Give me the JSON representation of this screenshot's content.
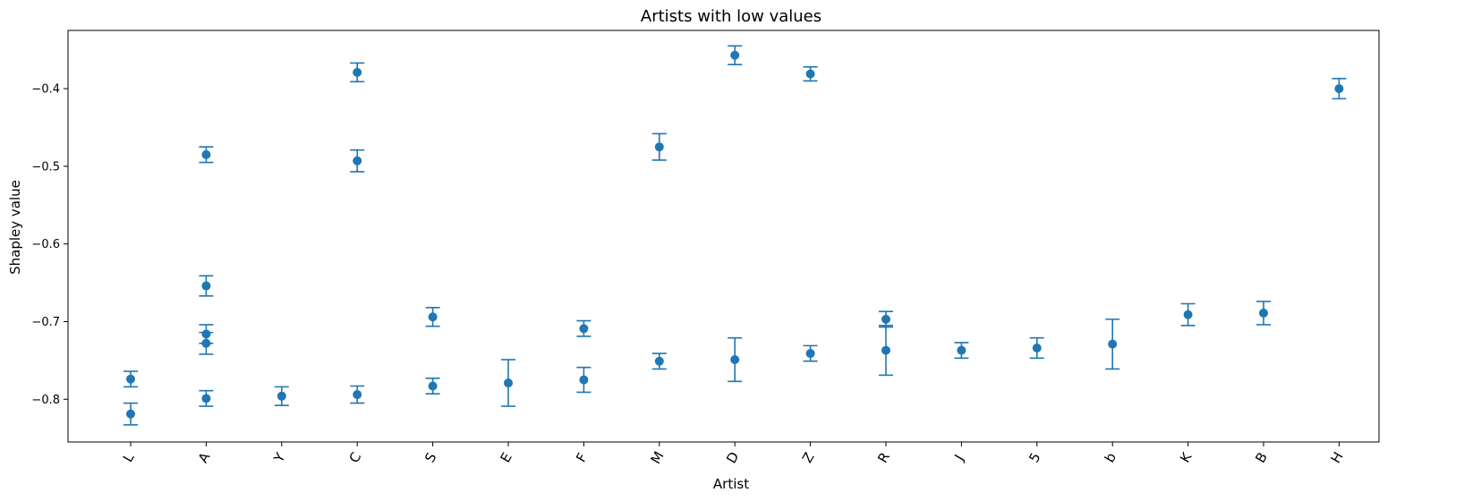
{
  "chart_data": {
    "type": "scatter",
    "title": "Artists with low values",
    "xlabel": "Artist",
    "ylabel": "Shapley value",
    "categories": [
      "L",
      "A",
      "Y",
      "C",
      "S",
      "E",
      "F",
      "M",
      "D",
      "Z",
      "R",
      "J",
      "5",
      "b",
      "K",
      "B",
      "H"
    ],
    "ylim": [
      -0.855,
      -0.325
    ],
    "yticks": [
      -0.8,
      -0.7,
      -0.6,
      -0.5,
      -0.4
    ],
    "ytick_labels": [
      "−0.8",
      "−0.7",
      "−0.6",
      "−0.5",
      "−0.4"
    ],
    "grid": false,
    "legend": "none",
    "marker_color": "#1f77b4",
    "points": [
      {
        "category": "L",
        "y": -0.774,
        "err": 0.01
      },
      {
        "category": "L",
        "y": -0.819,
        "err": 0.014
      },
      {
        "category": "A",
        "y": -0.485,
        "err": 0.01
      },
      {
        "category": "A",
        "y": -0.654,
        "err": 0.013
      },
      {
        "category": "A",
        "y": -0.716,
        "err": 0.012
      },
      {
        "category": "A",
        "y": -0.728,
        "err": 0.014
      },
      {
        "category": "A",
        "y": -0.799,
        "err": 0.01
      },
      {
        "category": "Y",
        "y": -0.796,
        "err": 0.012
      },
      {
        "category": "C",
        "y": -0.379,
        "err": 0.012
      },
      {
        "category": "C",
        "y": -0.493,
        "err": 0.014
      },
      {
        "category": "C",
        "y": -0.794,
        "err": 0.011
      },
      {
        "category": "S",
        "y": -0.694,
        "err": 0.012
      },
      {
        "category": "S",
        "y": -0.783,
        "err": 0.01
      },
      {
        "category": "E",
        "y": -0.779,
        "err": 0.03
      },
      {
        "category": "F",
        "y": -0.709,
        "err": 0.01
      },
      {
        "category": "F",
        "y": -0.775,
        "err": 0.016
      },
      {
        "category": "M",
        "y": -0.475,
        "err": 0.017
      },
      {
        "category": "M",
        "y": -0.751,
        "err": 0.01
      },
      {
        "category": "D",
        "y": -0.357,
        "err": 0.012
      },
      {
        "category": "D",
        "y": -0.749,
        "err": 0.028
      },
      {
        "category": "Z",
        "y": -0.381,
        "err": 0.009
      },
      {
        "category": "Z",
        "y": -0.741,
        "err": 0.01
      },
      {
        "category": "R",
        "y": -0.697,
        "err": 0.01
      },
      {
        "category": "R",
        "y": -0.737,
        "err": 0.032
      },
      {
        "category": "J",
        "y": -0.737,
        "err": 0.01
      },
      {
        "category": "5",
        "y": -0.734,
        "err": 0.013
      },
      {
        "category": "b",
        "y": -0.729,
        "err": 0.032
      },
      {
        "category": "K",
        "y": -0.691,
        "err": 0.014
      },
      {
        "category": "B",
        "y": -0.689,
        "err": 0.015
      },
      {
        "category": "H",
        "y": -0.4,
        "err": 0.013
      }
    ]
  }
}
